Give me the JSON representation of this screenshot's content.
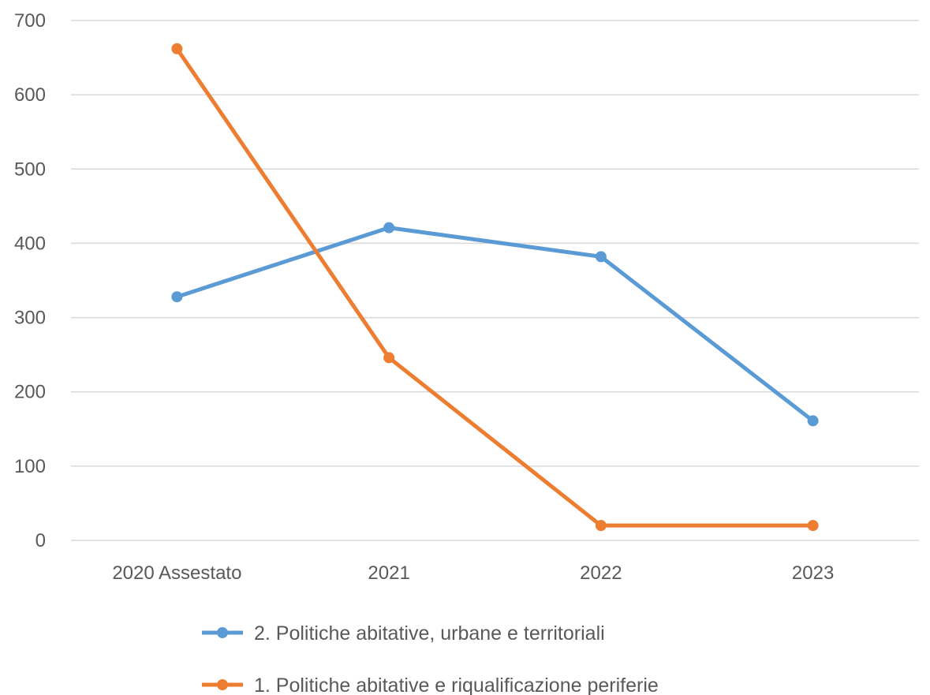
{
  "chart_data": {
    "type": "line",
    "title": "",
    "xlabel": "",
    "ylabel": "",
    "categories": [
      "2020 Assestato",
      "2021",
      "2022",
      "2023"
    ],
    "series": [
      {
        "name": "2. Politiche abitative, urbane e territoriali",
        "color": "#5B9BD5",
        "values": [
          328,
          421,
          382,
          161
        ]
      },
      {
        "name": "1. Politiche abitative e riqualificazione periferie",
        "color": "#ED7D31",
        "values": [
          662,
          246,
          20,
          20
        ]
      }
    ],
    "ylim": [
      0,
      700
    ],
    "yticks": [
      0,
      100,
      200,
      300,
      400,
      500,
      600,
      700
    ],
    "ytick_labels": [
      "0",
      "100",
      "200",
      "300",
      "400",
      "500",
      "600",
      "700"
    ],
    "grid": true,
    "legend_position": "bottom"
  }
}
